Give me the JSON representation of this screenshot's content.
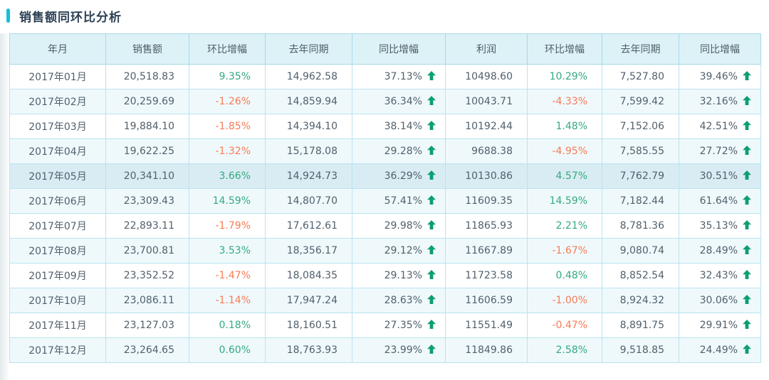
{
  "page": {
    "title": "销售额同环比分析"
  },
  "colors": {
    "accent_bar": "#15c0d6",
    "title_text": "#2e4156",
    "header_background": "#ddf2f7",
    "table_border": "#a6d9e8",
    "stripe_row_background": "#eff9fc",
    "highlight_row_background": "#d9ecf4",
    "cell_text": "#51606c",
    "positive_percent": "#35a97e",
    "negative_percent": "#f87b55",
    "up_arrow": "#0d9e72"
  },
  "icons": {
    "up_arrow": "arrow-up-icon"
  },
  "table": {
    "highlighted_row": 4,
    "columns": [
      {
        "key": "month",
        "label": "年月",
        "align": "center",
        "type": "text"
      },
      {
        "key": "sales",
        "label": "销售额",
        "align": "right",
        "type": "num"
      },
      {
        "key": "sales_mom",
        "label": "环比增幅",
        "align": "right",
        "type": "pct"
      },
      {
        "key": "sales_ly",
        "label": "去年同期",
        "align": "right",
        "type": "num"
      },
      {
        "key": "sales_yoy",
        "label": "同比增幅",
        "align": "right",
        "type": "pct-arrow"
      },
      {
        "key": "profit",
        "label": "利润",
        "align": "right",
        "type": "num"
      },
      {
        "key": "profit_mom",
        "label": "环比增幅",
        "align": "right",
        "type": "pct"
      },
      {
        "key": "profit_ly",
        "label": "去年同期",
        "align": "right",
        "type": "num"
      },
      {
        "key": "profit_yoy",
        "label": "同比增幅",
        "align": "right",
        "type": "pct-arrow"
      }
    ],
    "rows": [
      {
        "month": "2017年01月",
        "sales": "20,518.83",
        "sales_mom": "9.35%",
        "sales_ly": "14,962.58",
        "sales_yoy": "37.13%",
        "profit": "10498.60",
        "profit_mom": "10.29%",
        "profit_ly": "7,527.80",
        "profit_yoy": "39.46%"
      },
      {
        "month": "2017年02月",
        "sales": "20,259.69",
        "sales_mom": "-1.26%",
        "sales_ly": "14,859.94",
        "sales_yoy": "36.34%",
        "profit": "10043.71",
        "profit_mom": "-4.33%",
        "profit_ly": "7,599.42",
        "profit_yoy": "32.16%"
      },
      {
        "month": "2017年03月",
        "sales": "19,884.10",
        "sales_mom": "-1.85%",
        "sales_ly": "14,394.10",
        "sales_yoy": "38.14%",
        "profit": "10192.44",
        "profit_mom": "1.48%",
        "profit_ly": "7,152.06",
        "profit_yoy": "42.51%"
      },
      {
        "month": "2017年04月",
        "sales": "19,622.25",
        "sales_mom": "-1.32%",
        "sales_ly": "15,178.08",
        "sales_yoy": "29.28%",
        "profit": "9688.38",
        "profit_mom": "-4.95%",
        "profit_ly": "7,585.55",
        "profit_yoy": "27.72%"
      },
      {
        "month": "2017年05月",
        "sales": "20,341.10",
        "sales_mom": "3.66%",
        "sales_ly": "14,924.73",
        "sales_yoy": "36.29%",
        "profit": "10130.86",
        "profit_mom": "4.57%",
        "profit_ly": "7,762.79",
        "profit_yoy": "30.51%"
      },
      {
        "month": "2017年06月",
        "sales": "23,309.43",
        "sales_mom": "14.59%",
        "sales_ly": "14,807.70",
        "sales_yoy": "57.41%",
        "profit": "11609.35",
        "profit_mom": "14.59%",
        "profit_ly": "7,182.44",
        "profit_yoy": "61.64%"
      },
      {
        "month": "2017年07月",
        "sales": "22,893.11",
        "sales_mom": "-1.79%",
        "sales_ly": "17,612.61",
        "sales_yoy": "29.98%",
        "profit": "11865.93",
        "profit_mom": "2.21%",
        "profit_ly": "8,781.36",
        "profit_yoy": "35.13%"
      },
      {
        "month": "2017年08月",
        "sales": "23,700.81",
        "sales_mom": "3.53%",
        "sales_ly": "18,356.17",
        "sales_yoy": "29.12%",
        "profit": "11667.89",
        "profit_mom": "-1.67%",
        "profit_ly": "9,080.74",
        "profit_yoy": "28.49%"
      },
      {
        "month": "2017年09月",
        "sales": "23,352.52",
        "sales_mom": "-1.47%",
        "sales_ly": "18,084.35",
        "sales_yoy": "29.13%",
        "profit": "11723.58",
        "profit_mom": "0.48%",
        "profit_ly": "8,852.54",
        "profit_yoy": "32.43%"
      },
      {
        "month": "2017年10月",
        "sales": "23,086.11",
        "sales_mom": "-1.14%",
        "sales_ly": "17,947.24",
        "sales_yoy": "28.63%",
        "profit": "11606.59",
        "profit_mom": "-1.00%",
        "profit_ly": "8,924.32",
        "profit_yoy": "30.06%"
      },
      {
        "month": "2017年11月",
        "sales": "23,127.03",
        "sales_mom": "0.18%",
        "sales_ly": "18,160.51",
        "sales_yoy": "27.35%",
        "profit": "11551.49",
        "profit_mom": "-0.47%",
        "profit_ly": "8,891.75",
        "profit_yoy": "29.91%"
      },
      {
        "month": "2017年12月",
        "sales": "23,264.65",
        "sales_mom": "0.60%",
        "sales_ly": "18,763.93",
        "sales_yoy": "23.99%",
        "profit": "11849.86",
        "profit_mom": "2.58%",
        "profit_ly": "9,518.85",
        "profit_yoy": "24.49%"
      }
    ]
  }
}
